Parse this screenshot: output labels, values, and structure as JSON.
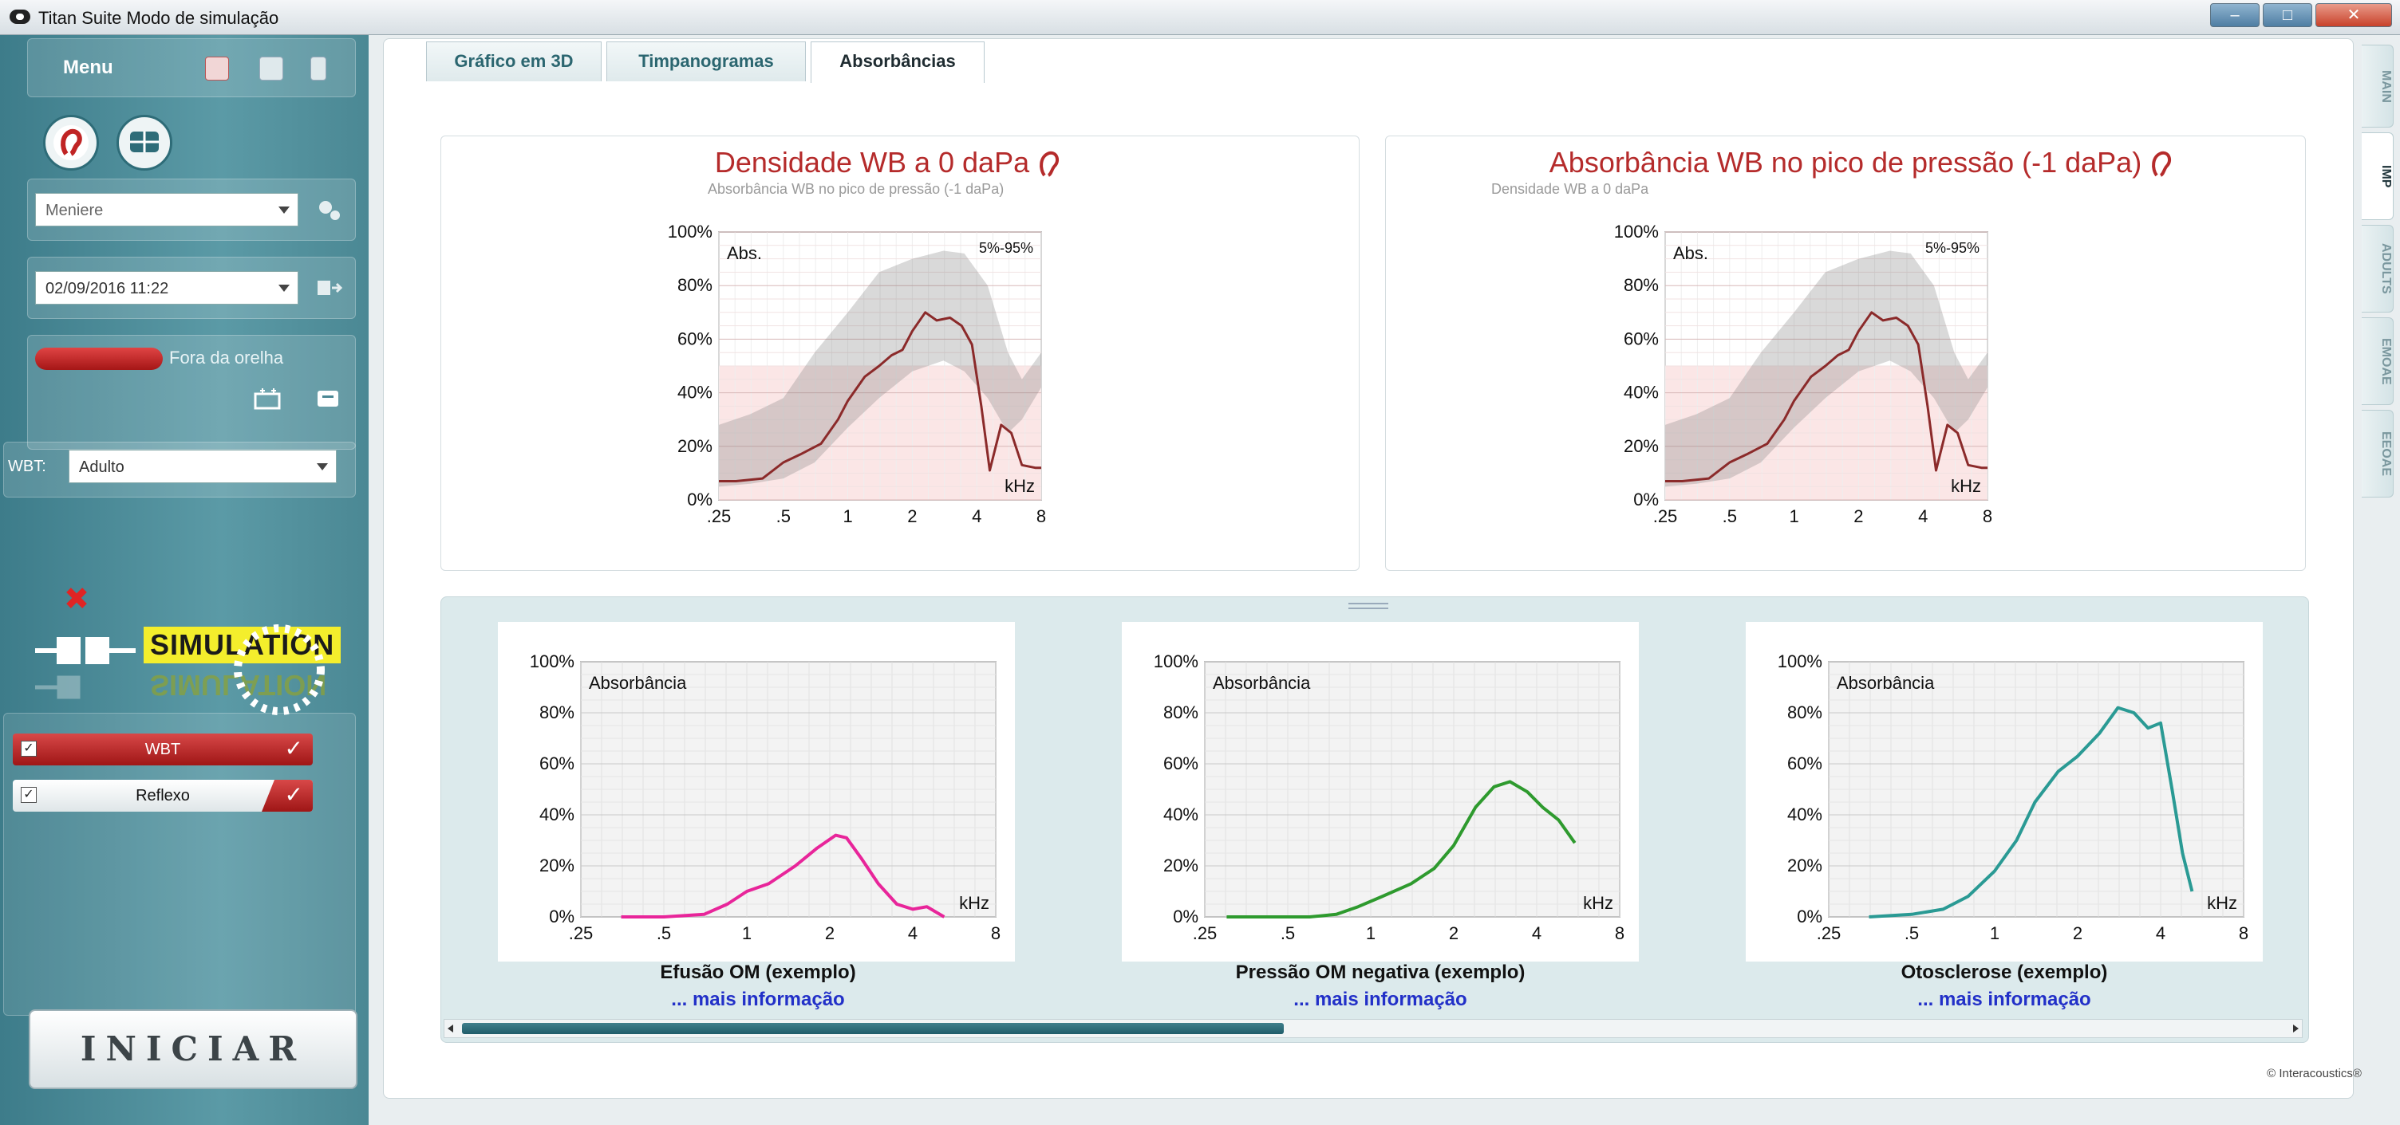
{
  "window": {
    "title": "Titan Suite Modo de simulação"
  },
  "sidebar": {
    "menu_label": "Menu",
    "patient_value": "Meniere",
    "session_value": "02/09/2016 11:22",
    "ear_status": "Fora da orelha",
    "wbt_label": "WBT:",
    "wbt_value": "Adulto",
    "simulation_text": "SIMULATION",
    "protocols": [
      {
        "label": "WBT",
        "checked": true
      },
      {
        "label": "Reflexo",
        "checked": true
      }
    ],
    "start_button": "INICIAR"
  },
  "tabs": [
    "Gráfico em 3D",
    "Timpanogramas",
    "Absorbâncias"
  ],
  "active_tab": "Absorbâncias",
  "side_tabs": [
    "MAIN",
    "IMP",
    "ADULTS",
    "EMOAE",
    "EEOAE"
  ],
  "active_side_tab": "IMP",
  "top_charts": {
    "left": {
      "title": "Densidade WB a 0 daPa",
      "subtitle": "Absorbância WB no pico de pressão (-1 daPa)"
    },
    "right": {
      "title": "Absorbância WB no pico de pressão (-1 daPa)",
      "subtitle": "Densidade WB a 0 daPa"
    },
    "y_label": "Abs.",
    "band_label": "5%-95%",
    "x_unit": "kHz"
  },
  "examples": [
    {
      "caption": "Efusão OM (exemplo)",
      "link": "... mais informação",
      "y_label": "Absorbância",
      "x_unit": "kHz"
    },
    {
      "caption": "Pressão OM negativa (exemplo)",
      "link": "... mais informação",
      "y_label": "Absorbância",
      "x_unit": "kHz"
    },
    {
      "caption": "Otosclerose (exemplo)",
      "link": "... mais informação",
      "y_label": "Absorbância",
      "x_unit": "kHz"
    }
  ],
  "footer": {
    "copyright": "© Interacoustics®"
  },
  "chart_data": [
    {
      "type": "area",
      "title": "Densidade WB a 0 daPa",
      "subtitle": "Absorbância WB no pico de pressão (-1 daPa)",
      "ylabel": "Abs.",
      "xlabel": "kHz",
      "x_scale": "log",
      "x_ticks": [
        ".25",
        ".5",
        "1",
        "2",
        "4",
        "8"
      ],
      "y_ticks": [
        "0%",
        "20%",
        "40%",
        "60%",
        "80%",
        "100%"
      ],
      "ylim": [
        0,
        100
      ],
      "xlim": [
        0.25,
        8
      ],
      "band": {
        "name": "5%-95%",
        "x": [
          0.25,
          0.35,
          0.5,
          0.7,
          1,
          1.4,
          2,
          2.8,
          3.5,
          4.5,
          5.6,
          6.5,
          8
        ],
        "lower": [
          5,
          6,
          8,
          14,
          27,
          38,
          48,
          52,
          48,
          38,
          25,
          30,
          42
        ],
        "upper": [
          28,
          32,
          38,
          55,
          70,
          85,
          90,
          93,
          92,
          80,
          55,
          45,
          55
        ]
      },
      "series": [
        {
          "x": [
            0.25,
            0.3,
            0.4,
            0.5,
            0.6,
            0.75,
            0.9,
            1,
            1.2,
            1.4,
            1.6,
            1.8,
            2,
            2.3,
            2.6,
            3,
            3.4,
            3.8,
            4.2,
            4.6,
            5.2,
            5.8,
            6.5,
            7.5,
            8
          ],
          "values": [
            7,
            7,
            8,
            14,
            17,
            21,
            30,
            37,
            46,
            50,
            54,
            56,
            63,
            70,
            67,
            68,
            65,
            58,
            35,
            11,
            28,
            25,
            13,
            12,
            12
          ]
        }
      ]
    },
    {
      "type": "area",
      "title": "Absorbância WB no pico de pressão (-1 daPa)",
      "subtitle": "Densidade WB a 0 daPa",
      "ylabel": "Abs.",
      "xlabel": "kHz",
      "x_scale": "log",
      "x_ticks": [
        ".25",
        ".5",
        "1",
        "2",
        "4",
        "8"
      ],
      "y_ticks": [
        "0%",
        "20%",
        "40%",
        "60%",
        "80%",
        "100%"
      ],
      "ylim": [
        0,
        100
      ],
      "xlim": [
        0.25,
        8
      ],
      "band": {
        "name": "5%-95%",
        "x": [
          0.25,
          0.35,
          0.5,
          0.7,
          1,
          1.4,
          2,
          2.8,
          3.5,
          4.5,
          5.6,
          6.5,
          8
        ],
        "lower": [
          5,
          6,
          8,
          14,
          27,
          38,
          48,
          52,
          48,
          38,
          25,
          30,
          42
        ],
        "upper": [
          28,
          32,
          38,
          55,
          70,
          85,
          90,
          93,
          92,
          80,
          55,
          45,
          55
        ]
      },
      "series": [
        {
          "x": [
            0.25,
            0.3,
            0.4,
            0.5,
            0.6,
            0.75,
            0.9,
            1,
            1.2,
            1.4,
            1.6,
            1.8,
            2,
            2.3,
            2.6,
            3,
            3.4,
            3.8,
            4.2,
            4.6,
            5.2,
            5.8,
            6.5,
            7.5,
            8
          ],
          "values": [
            7,
            7,
            8,
            14,
            17,
            21,
            30,
            37,
            46,
            50,
            54,
            56,
            63,
            70,
            67,
            68,
            65,
            58,
            35,
            11,
            28,
            25,
            13,
            12,
            12
          ]
        }
      ]
    },
    {
      "type": "line",
      "title": "Efusão OM (exemplo)",
      "ylabel": "Absorbância",
      "xlabel": "kHz",
      "x_scale": "log",
      "x_ticks": [
        ".25",
        ".5",
        "1",
        "2",
        "4",
        "8"
      ],
      "y_ticks": [
        "0%",
        "20%",
        "40%",
        "60%",
        "80%",
        "100%"
      ],
      "ylim": [
        0,
        100
      ],
      "xlim": [
        0.25,
        8
      ],
      "color": "#e8259a",
      "series": [
        {
          "x": [
            0.35,
            0.5,
            0.7,
            0.85,
            1,
            1.2,
            1.5,
            1.8,
            2.1,
            2.3,
            2.6,
            3,
            3.5,
            4,
            4.5,
            5.2
          ],
          "values": [
            0,
            0,
            1,
            5,
            10,
            13,
            20,
            27,
            32,
            31,
            23,
            13,
            5,
            3,
            4,
            0
          ]
        }
      ]
    },
    {
      "type": "line",
      "title": "Pressão OM negativa (exemplo)",
      "ylabel": "Absorbância",
      "xlabel": "kHz",
      "x_scale": "log",
      "x_ticks": [
        ".25",
        ".5",
        "1",
        "2",
        "4",
        "8"
      ],
      "y_ticks": [
        "0%",
        "20%",
        "40%",
        "60%",
        "80%",
        "100%"
      ],
      "ylim": [
        0,
        100
      ],
      "xlim": [
        0.25,
        8
      ],
      "color": "#2e9a2e",
      "series": [
        {
          "x": [
            0.3,
            0.45,
            0.6,
            0.75,
            0.9,
            1.1,
            1.4,
            1.7,
            2,
            2.4,
            2.8,
            3.2,
            3.7,
            4.2,
            4.8,
            5.5
          ],
          "values": [
            0,
            0,
            0,
            1,
            4,
            8,
            13,
            19,
            28,
            43,
            51,
            53,
            49,
            43,
            38,
            29
          ]
        }
      ]
    },
    {
      "type": "line",
      "title": "Otosclerose (exemplo)",
      "ylabel": "Absorbância",
      "xlabel": "kHz",
      "x_scale": "log",
      "x_ticks": [
        ".25",
        ".5",
        "1",
        "2",
        "4",
        "8"
      ],
      "y_ticks": [
        "0%",
        "20%",
        "40%",
        "60%",
        "80%",
        "100%"
      ],
      "ylim": [
        0,
        100
      ],
      "xlim": [
        0.25,
        8
      ],
      "color": "#2a9a94",
      "series": [
        {
          "x": [
            0.35,
            0.5,
            0.65,
            0.8,
            1,
            1.2,
            1.4,
            1.7,
            2,
            2.4,
            2.8,
            3.2,
            3.6,
            4,
            4.4,
            4.8,
            5.2
          ],
          "values": [
            0,
            1,
            3,
            8,
            18,
            30,
            45,
            57,
            63,
            72,
            82,
            80,
            74,
            76,
            50,
            25,
            10
          ]
        }
      ]
    }
  ],
  "colors": {
    "accent": "#2e6c78",
    "record_red": "#c02424",
    "sim_yellow": "#f4ee2c",
    "link_blue": "#2230c8"
  }
}
